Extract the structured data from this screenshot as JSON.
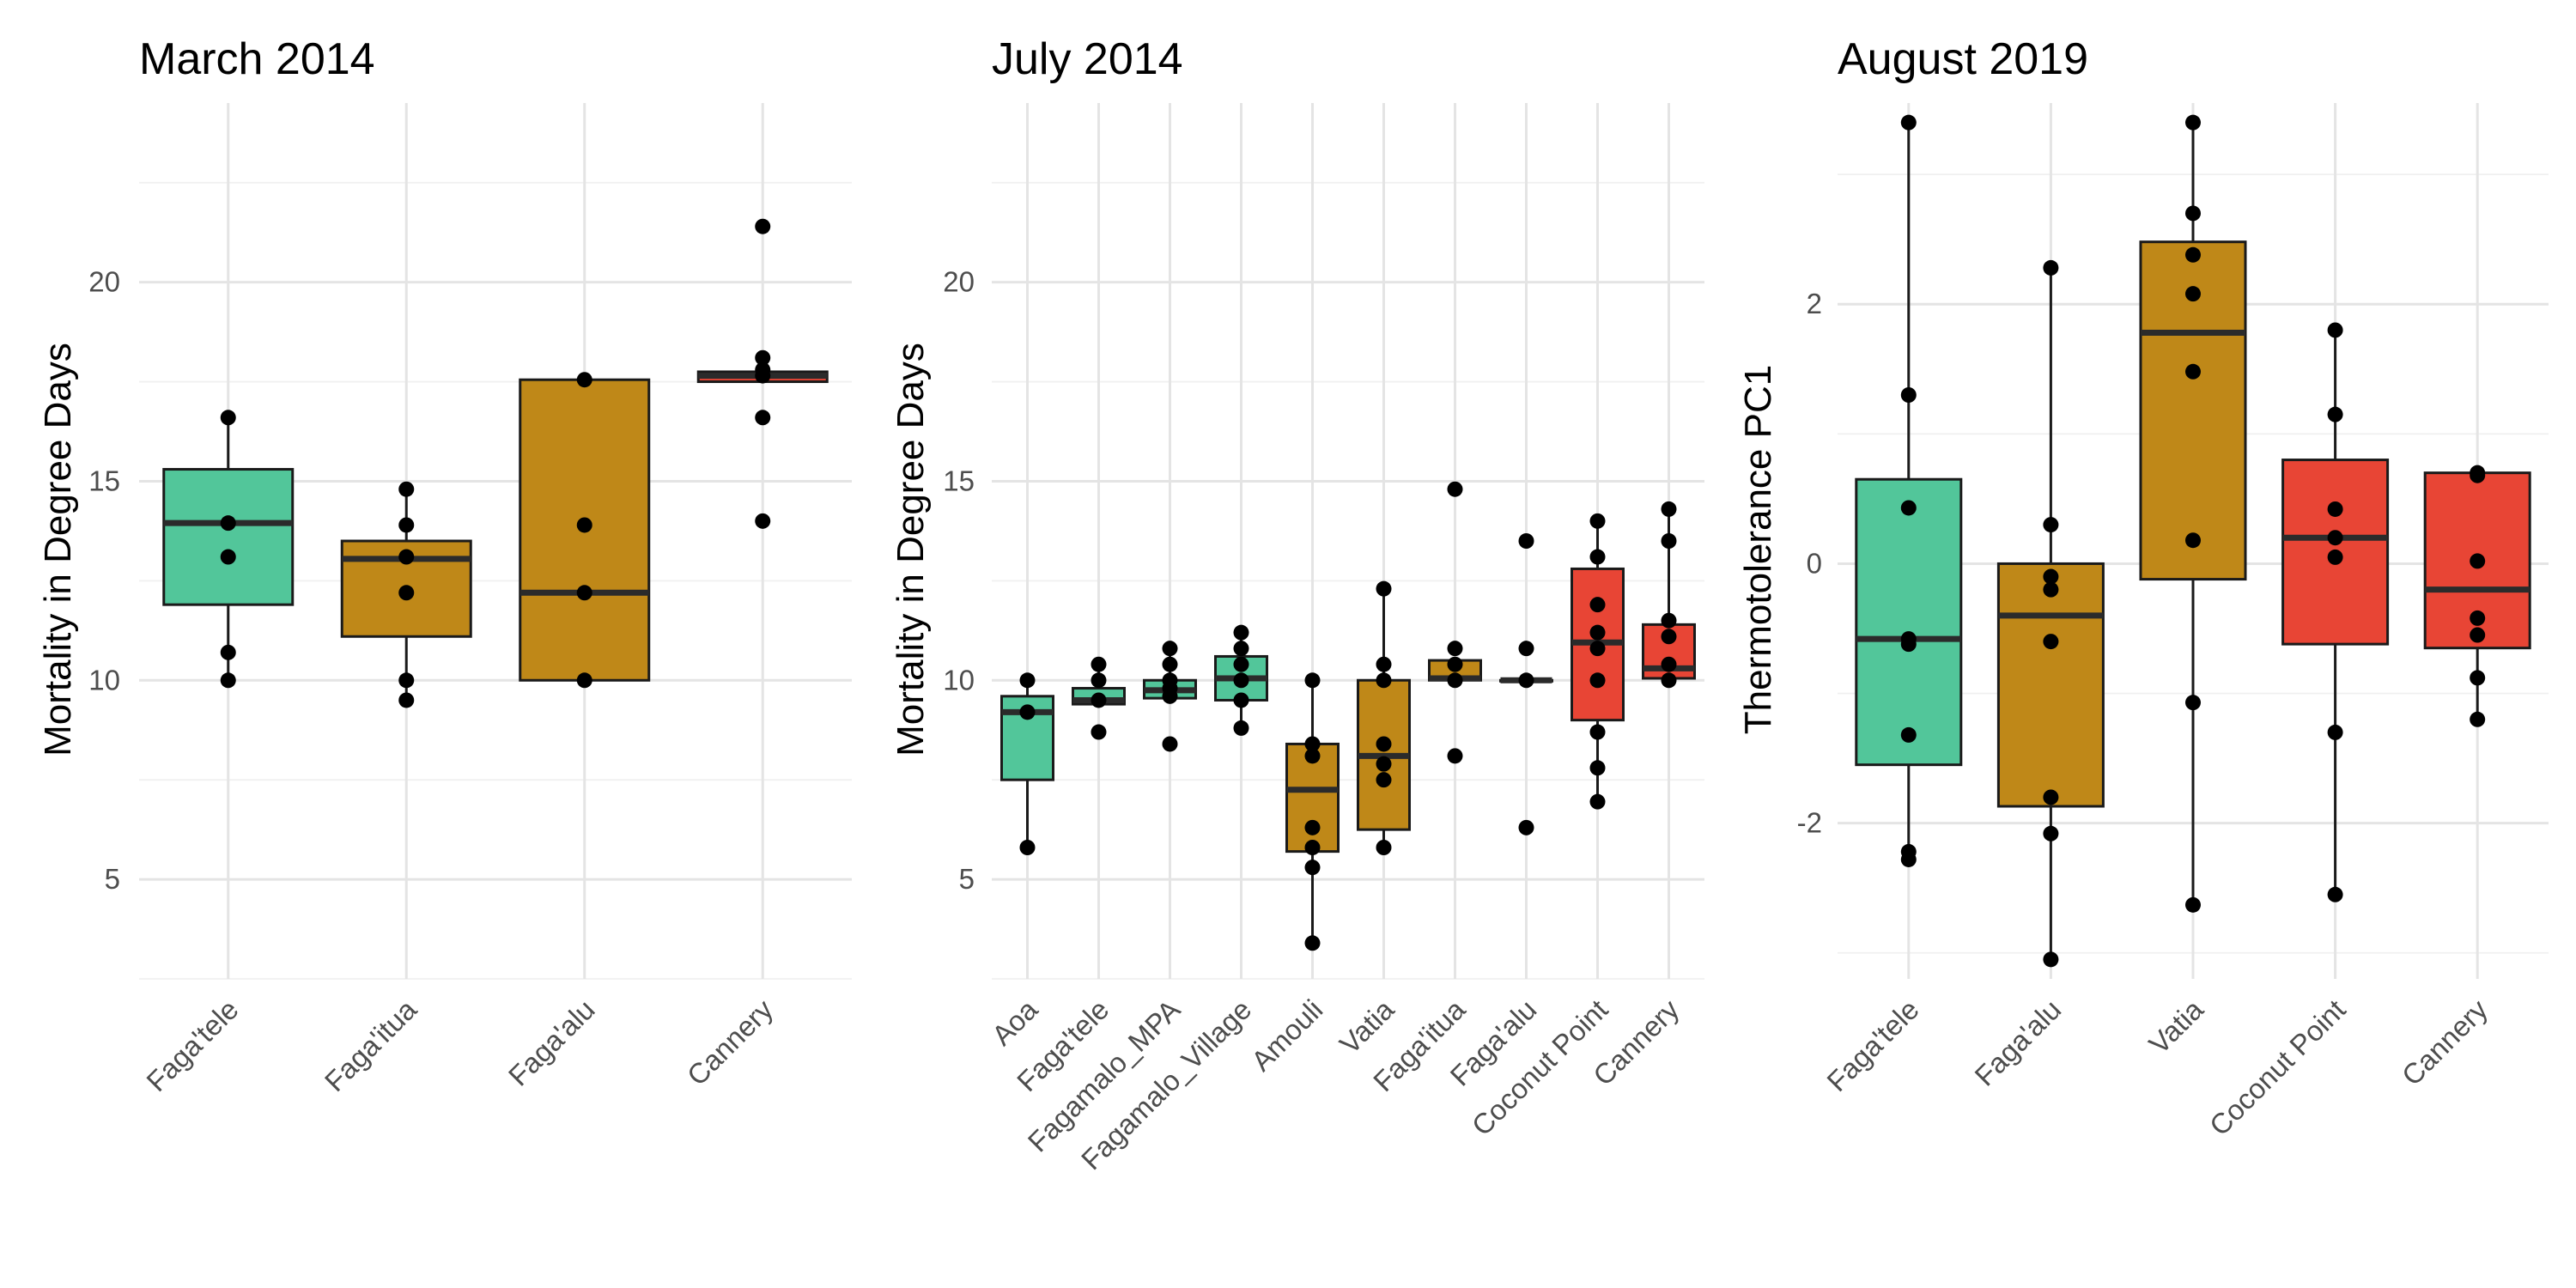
{
  "chart_data": [
    {
      "type": "box",
      "title": "March 2014",
      "ylabel": "Mortality in Degree Days",
      "ylim": [
        2.5,
        24.5
      ],
      "yticks": [
        5,
        10,
        15,
        20
      ],
      "categories": [
        "Faga'tele",
        "Faga'itua",
        "Faga'alu",
        "Cannery"
      ],
      "boxes": [
        {
          "category": "Faga'tele",
          "color": "#52c69a",
          "q1": 11.9,
          "median": 13.95,
          "q3": 15.3,
          "whisker_low": 10.0,
          "whisker_high": 16.6,
          "points": [
            16.6,
            13.95,
            13.1,
            10.7,
            10.0
          ]
        },
        {
          "category": "Faga'itua",
          "color": "#bf8818",
          "q1": 11.1,
          "median": 13.05,
          "q3": 13.5,
          "whisker_low": 9.5,
          "whisker_high": 14.8,
          "points": [
            14.8,
            13.9,
            13.1,
            12.2,
            10.0,
            9.5
          ]
        },
        {
          "category": "Faga'alu",
          "color": "#bf8818",
          "q1": 10.0,
          "median": 12.2,
          "q3": 17.55,
          "whisker_low": 10.0,
          "whisker_high": 17.55,
          "points": [
            17.55,
            13.9,
            12.2,
            10.0
          ]
        },
        {
          "category": "Cannery",
          "color": "#e84535",
          "q1": 17.5,
          "median": 17.65,
          "q3": 17.75,
          "whisker_low": 17.5,
          "whisker_high": 17.75,
          "points": [
            21.4,
            18.1,
            17.8,
            17.65,
            16.6,
            14.0
          ]
        }
      ]
    },
    {
      "type": "box",
      "title": "July 2014",
      "ylabel": "Mortality in Degree Days",
      "ylim": [
        2.5,
        24.5
      ],
      "yticks": [
        5,
        10,
        15,
        20
      ],
      "categories": [
        "Aoa",
        "Faga'tele",
        "Fagamalo_MPA",
        "Fagamalo_Village",
        "Amouli",
        "Vatia",
        "Faga'itua",
        "Faga'alu",
        "Coconut Point",
        "Cannery"
      ],
      "boxes": [
        {
          "category": "Aoa",
          "color": "#52c69a",
          "q1": 7.5,
          "median": 9.2,
          "q3": 9.6,
          "whisker_low": 5.8,
          "whisker_high": 10.0,
          "points": [
            10.0,
            9.2,
            5.8
          ]
        },
        {
          "category": "Faga'tele",
          "color": "#52c69a",
          "q1": 9.4,
          "median": 9.5,
          "q3": 9.8,
          "whisker_low": 9.4,
          "whisker_high": 10.4,
          "points": [
            10.4,
            10.0,
            9.5,
            8.7
          ]
        },
        {
          "category": "Fagamalo_MPA",
          "color": "#52c69a",
          "q1": 9.55,
          "median": 9.75,
          "q3": 10.0,
          "whisker_low": 9.5,
          "whisker_high": 10.8,
          "points": [
            10.8,
            10.4,
            10.0,
            9.8,
            9.6,
            8.4
          ]
        },
        {
          "category": "Fagamalo_Village",
          "color": "#52c69a",
          "q1": 9.5,
          "median": 10.05,
          "q3": 10.6,
          "whisker_low": 8.8,
          "whisker_high": 11.2,
          "points": [
            11.2,
            10.8,
            10.4,
            10.0,
            9.5,
            8.8
          ]
        },
        {
          "category": "Amouli",
          "color": "#bf8818",
          "q1": 5.7,
          "median": 7.25,
          "q3": 8.4,
          "whisker_low": 3.4,
          "whisker_high": 10.0,
          "points": [
            10.0,
            8.4,
            8.1,
            6.3,
            5.8,
            5.3,
            3.4
          ]
        },
        {
          "category": "Vatia",
          "color": "#bf8818",
          "q1": 6.25,
          "median": 8.1,
          "q3": 10.0,
          "whisker_low": 5.8,
          "whisker_high": 12.3,
          "points": [
            12.3,
            10.4,
            10.0,
            8.4,
            7.9,
            7.5,
            5.8
          ]
        },
        {
          "category": "Faga'itua",
          "color": "#bf8818",
          "q1": 10.0,
          "median": 10.05,
          "q3": 10.5,
          "whisker_low": 10.0,
          "whisker_high": 10.5,
          "points": [
            14.8,
            10.8,
            10.4,
            10.0,
            8.1
          ]
        },
        {
          "category": "Faga'alu",
          "color": "#bf8818",
          "q1": 10.0,
          "median": 10.0,
          "q3": 10.0,
          "whisker_low": 10.0,
          "whisker_high": 10.0,
          "points": [
            13.5,
            10.8,
            10.0,
            6.3
          ]
        },
        {
          "category": "Coconut Point",
          "color": "#e84535",
          "q1": 9.0,
          "median": 10.95,
          "q3": 12.8,
          "whisker_low": 6.95,
          "whisker_high": 14.0,
          "points": [
            14.0,
            13.1,
            11.9,
            11.2,
            10.8,
            10.0,
            8.7,
            7.8,
            6.95
          ]
        },
        {
          "category": "Cannery",
          "color": "#e84535",
          "q1": 10.05,
          "median": 10.3,
          "q3": 11.4,
          "whisker_low": 10.0,
          "whisker_high": 14.3,
          "points": [
            14.3,
            13.5,
            11.5,
            11.1,
            10.4,
            10.0
          ]
        }
      ]
    },
    {
      "type": "box",
      "title": "August 2019",
      "ylabel": "Thermotolerance PC1",
      "ylim": [
        -3.2,
        3.55
      ],
      "yticks": [
        -2,
        0,
        2
      ],
      "categories": [
        "Faga'tele",
        "Faga'alu",
        "Vatia",
        "Coconut Point",
        "Cannery"
      ],
      "boxes": [
        {
          "category": "Faga'tele",
          "color": "#52c69a",
          "q1": -1.55,
          "median": -0.58,
          "q3": 0.65,
          "whisker_low": -2.28,
          "whisker_high": 3.4,
          "points": [
            3.4,
            1.3,
            0.43,
            -0.58,
            -0.62,
            -1.32,
            -2.22,
            -2.28
          ]
        },
        {
          "category": "Faga'alu",
          "color": "#bf8818",
          "q1": -1.87,
          "median": -0.4,
          "q3": 0.0,
          "whisker_low": -3.05,
          "whisker_high": 2.28,
          "points": [
            2.28,
            0.3,
            -0.1,
            -0.2,
            -0.6,
            -1.8,
            -2.08,
            -3.05
          ]
        },
        {
          "category": "Vatia",
          "color": "#bf8818",
          "q1": -0.12,
          "median": 1.78,
          "q3": 2.48,
          "whisker_low": -2.63,
          "whisker_high": 3.4,
          "points": [
            3.4,
            2.7,
            2.38,
            2.08,
            1.48,
            0.18,
            -1.07,
            -2.63
          ]
        },
        {
          "category": "Coconut Point",
          "color": "#e84535",
          "q1": -0.62,
          "median": 0.2,
          "q3": 0.8,
          "whisker_low": -2.55,
          "whisker_high": 1.8,
          "points": [
            1.8,
            1.15,
            0.42,
            0.2,
            0.05,
            -1.3,
            -2.55
          ]
        },
        {
          "category": "Cannery",
          "color": "#e84535",
          "q1": -0.65,
          "median": -0.2,
          "q3": 0.7,
          "whisker_low": -1.2,
          "whisker_high": 0.7,
          "points": [
            0.7,
            0.68,
            0.02,
            -0.42,
            -0.55,
            -0.88,
            -1.2
          ]
        }
      ]
    }
  ]
}
